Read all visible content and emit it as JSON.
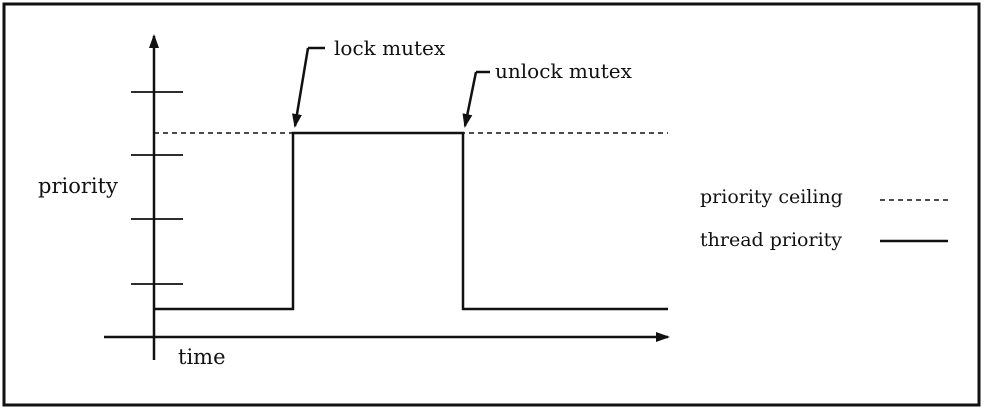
{
  "diagram": {
    "y_axis_label": "priority",
    "x_axis_label": "time",
    "annotations": {
      "lock": "lock mutex",
      "unlock": "unlock mutex"
    },
    "legend": {
      "ceiling": "priority ceiling",
      "thread": "thread priority"
    },
    "line_color": "#111111",
    "background": "#ffffff"
  }
}
